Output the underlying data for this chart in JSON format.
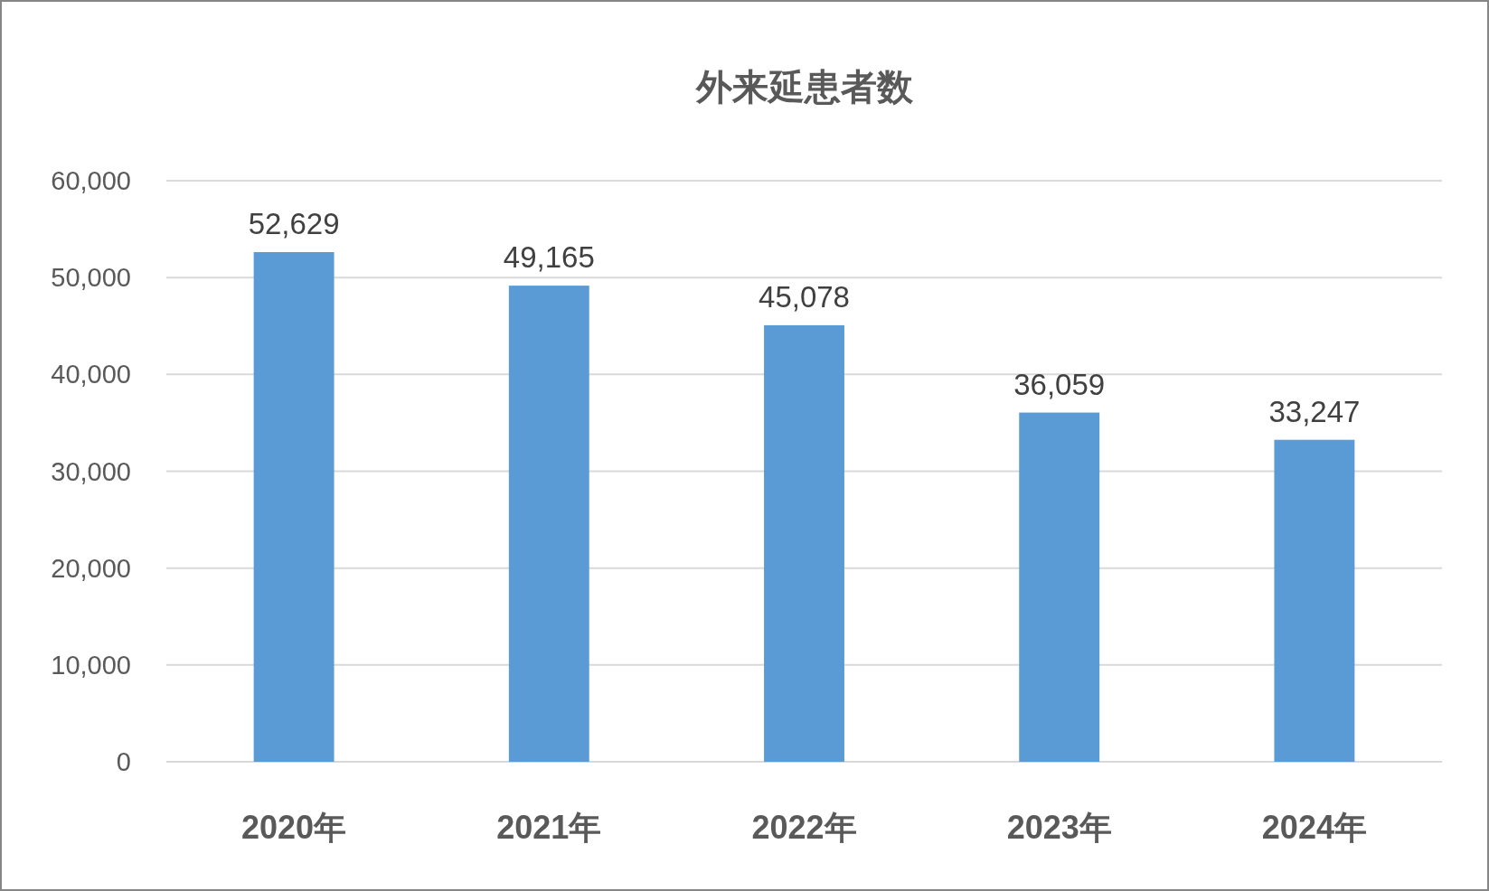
{
  "chart_data": {
    "type": "bar",
    "title": "外来延患者数",
    "categories": [
      "2020年",
      "2021年",
      "2022年",
      "2023年",
      "2024年"
    ],
    "values": [
      52629,
      49165,
      45078,
      36059,
      33247
    ],
    "color": "#5b9bd5",
    "ylim": [
      0,
      60000
    ],
    "yticks": [
      0,
      {
        "value": 10000,
        "label": "10,000"
      },
      {
        "value": 20000,
        "label": "20,000"
      },
      {
        "value": 30000,
        "label": "30,000"
      },
      {
        "value": 40000,
        "label": "40,000"
      },
      {
        "value": 50000,
        "label": "50,000"
      },
      {
        "value": 60000,
        "label": "60,000"
      }
    ],
    "grid": "y",
    "value_labels": [
      "52,629",
      "49,165",
      "45,078",
      "36,059",
      "33,247"
    ]
  }
}
